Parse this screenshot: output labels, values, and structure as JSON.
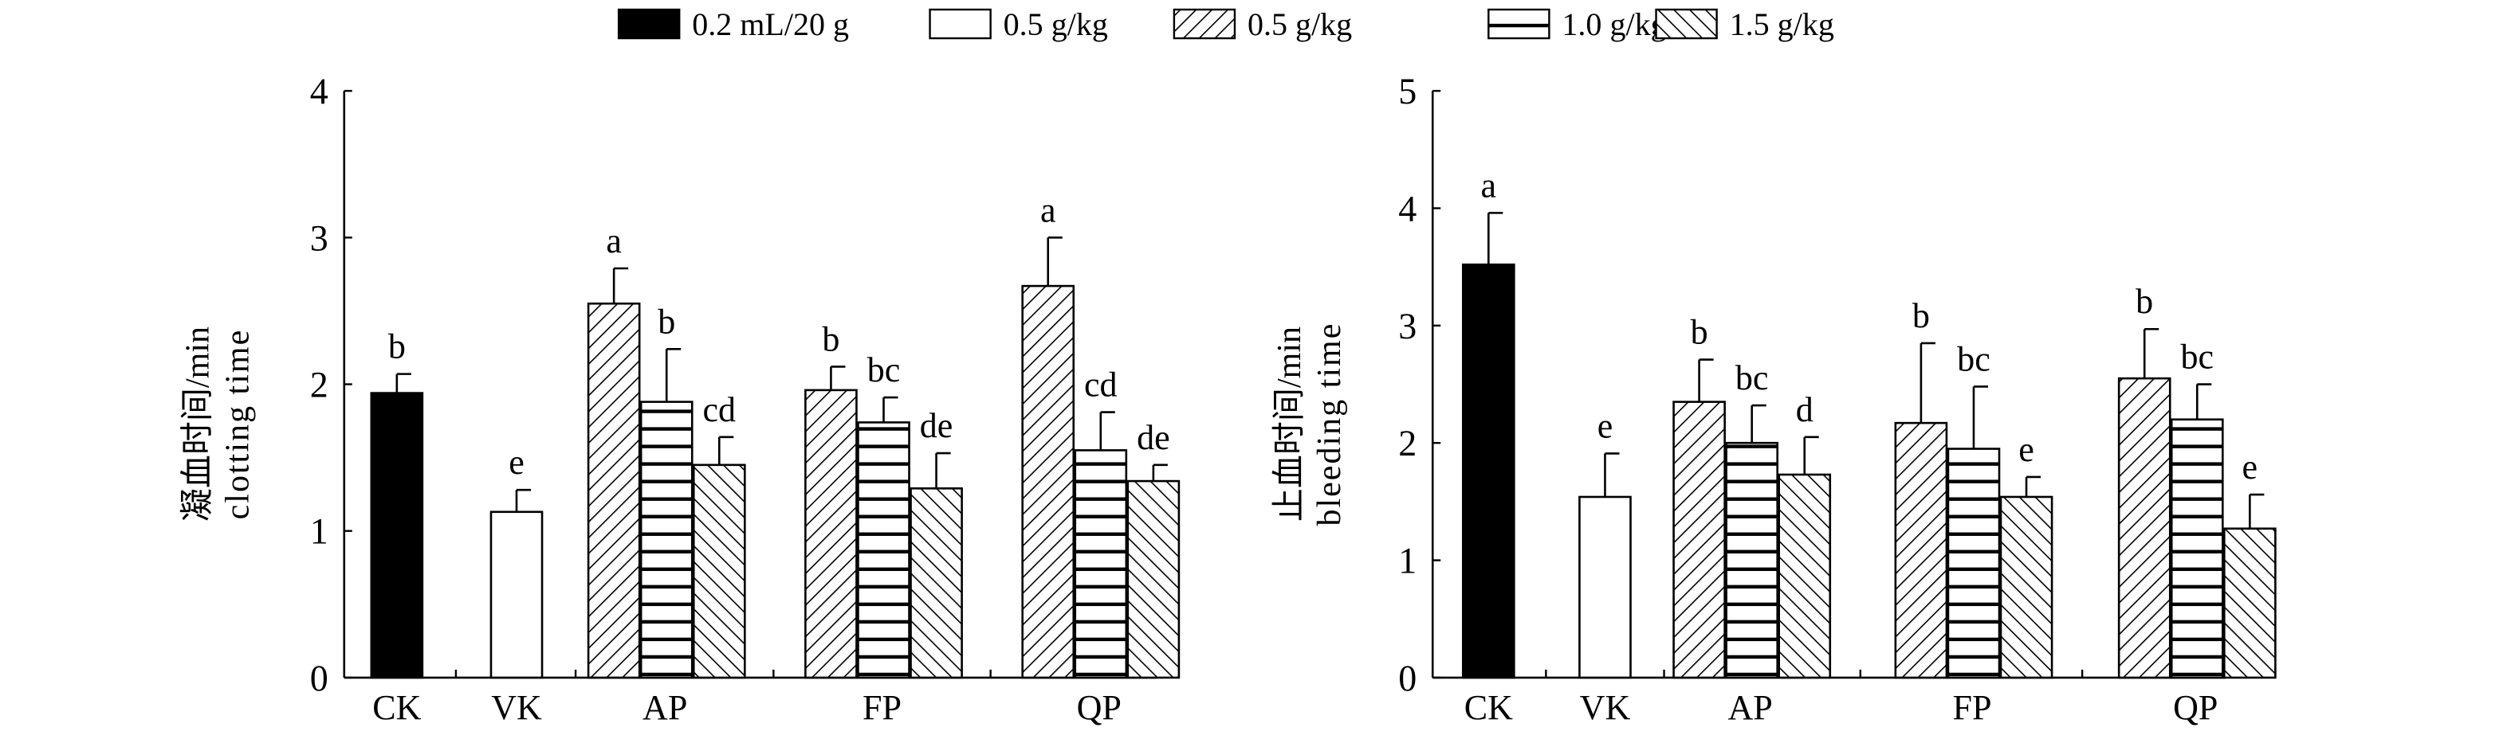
{
  "legend": [
    {
      "label": "0.2 mL/20 g",
      "pattern": "solid"
    },
    {
      "label": "0.5 g/kg",
      "pattern": "empty"
    },
    {
      "label": "0.5 g/kg",
      "pattern": "diag-fwd"
    },
    {
      "label": "1.0 g/kg",
      "pattern": "horiz"
    },
    {
      "label": "1.5 g/kg",
      "pattern": "diag-back"
    }
  ],
  "chart_data": [
    {
      "type": "bar",
      "ylabel_cn": "凝血时间/min",
      "ylabel_en": "clotting time",
      "ylim": [
        0,
        4
      ],
      "yticks": [
        "0",
        "1",
        "2",
        "3",
        "4"
      ],
      "categories": [
        "CK",
        "VK",
        "AP",
        "FP",
        "QP"
      ],
      "groups": [
        {
          "category": "CK",
          "bars": [
            {
              "pattern": "solid",
              "value": 1.94,
              "err_top": 2.07,
              "letter": "b"
            }
          ]
        },
        {
          "category": "VK",
          "bars": [
            {
              "pattern": "empty",
              "value": 1.13,
              "err_top": 1.28,
              "letter": "e"
            }
          ]
        },
        {
          "category": "AP",
          "bars": [
            {
              "pattern": "diag-fwd",
              "value": 2.55,
              "err_top": 2.79,
              "letter": "a"
            },
            {
              "pattern": "horiz",
              "value": 1.88,
              "err_top": 2.24,
              "letter": "b"
            },
            {
              "pattern": "diag-back",
              "value": 1.45,
              "err_top": 1.64,
              "letter": "cd"
            }
          ]
        },
        {
          "category": "FP",
          "bars": [
            {
              "pattern": "diag-fwd",
              "value": 1.96,
              "err_top": 2.12,
              "letter": "b"
            },
            {
              "pattern": "horiz",
              "value": 1.74,
              "err_top": 1.91,
              "letter": "bc"
            },
            {
              "pattern": "diag-back",
              "value": 1.29,
              "err_top": 1.53,
              "letter": "de"
            }
          ]
        },
        {
          "category": "QP",
          "bars": [
            {
              "pattern": "diag-fwd",
              "value": 2.67,
              "err_top": 3.0,
              "letter": "a"
            },
            {
              "pattern": "horiz",
              "value": 1.55,
              "err_top": 1.81,
              "letter": "cd"
            },
            {
              "pattern": "diag-back",
              "value": 1.34,
              "err_top": 1.45,
              "letter": "de"
            }
          ]
        }
      ]
    },
    {
      "type": "bar",
      "ylabel_cn": "止血时间/min",
      "ylabel_en": "bleeding time",
      "ylim": [
        0,
        5
      ],
      "yticks": [
        "0",
        "1",
        "2",
        "3",
        "4",
        "5"
      ],
      "categories": [
        "CK",
        "VK",
        "AP",
        "FP",
        "QP"
      ],
      "groups": [
        {
          "category": "CK",
          "bars": [
            {
              "pattern": "solid",
              "value": 3.52,
              "err_top": 3.96,
              "letter": "a"
            }
          ]
        },
        {
          "category": "VK",
          "bars": [
            {
              "pattern": "empty",
              "value": 1.54,
              "err_top": 1.91,
              "letter": "e"
            }
          ]
        },
        {
          "category": "AP",
          "bars": [
            {
              "pattern": "diag-fwd",
              "value": 2.35,
              "err_top": 2.71,
              "letter": "b"
            },
            {
              "pattern": "horiz",
              "value": 2.0,
              "err_top": 2.32,
              "letter": "bc"
            },
            {
              "pattern": "diag-back",
              "value": 1.73,
              "err_top": 2.05,
              "letter": "d"
            }
          ]
        },
        {
          "category": "FP",
          "bars": [
            {
              "pattern": "diag-fwd",
              "value": 2.17,
              "err_top": 2.85,
              "letter": "b"
            },
            {
              "pattern": "horiz",
              "value": 1.95,
              "err_top": 2.48,
              "letter": "bc"
            },
            {
              "pattern": "diag-back",
              "value": 1.54,
              "err_top": 1.71,
              "letter": "e"
            }
          ]
        },
        {
          "category": "QP",
          "bars": [
            {
              "pattern": "diag-fwd",
              "value": 2.55,
              "err_top": 2.97,
              "letter": "b"
            },
            {
              "pattern": "horiz",
              "value": 2.2,
              "err_top": 2.5,
              "letter": "bc"
            },
            {
              "pattern": "diag-back",
              "value": 1.27,
              "err_top": 1.56,
              "letter": "e"
            }
          ]
        }
      ]
    }
  ]
}
